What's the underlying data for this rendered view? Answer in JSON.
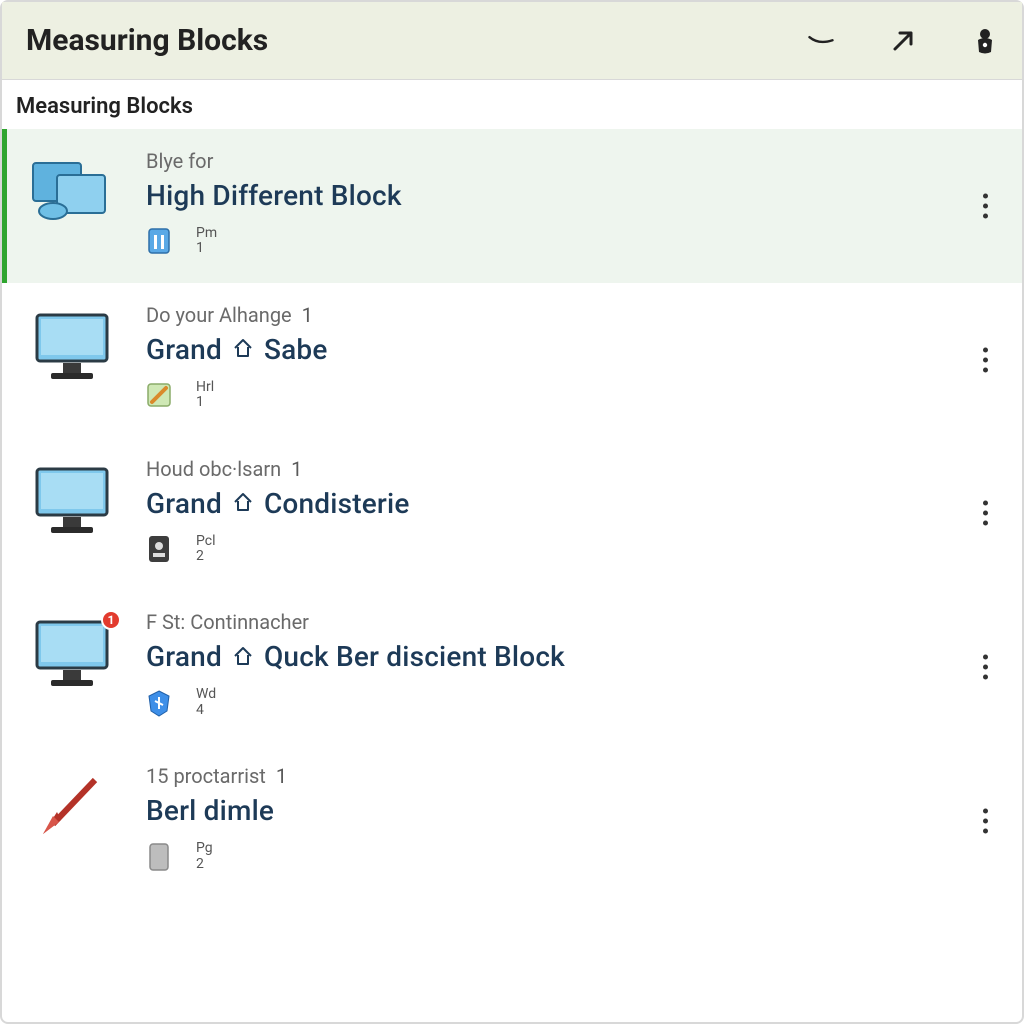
{
  "colors": {
    "titlebar_bg": "#edf0e2",
    "selected_bg": "#eef5ee",
    "selected_border": "#2fa52f",
    "title_text": "#1d3a57",
    "muted_text": "#6a6a6a",
    "notif_bg": "#e23b2e"
  },
  "header": {
    "title": "Measuring Blocks"
  },
  "subheader": "Measuring Blocks",
  "items": [
    {
      "supertitle": "Blye for",
      "supertitle_num": "",
      "title_pre": "High Different Block",
      "title_post": "",
      "has_home_icon": false,
      "thumb": "devices",
      "badge": "blue-building",
      "meta_code": "Pm",
      "meta_num": "1",
      "selected": true,
      "notif": ""
    },
    {
      "supertitle": "Do your Alhange",
      "supertitle_num": "1",
      "title_pre": "Grand",
      "title_post": "Sabe",
      "has_home_icon": true,
      "thumb": "monitor",
      "badge": "green-pencil",
      "meta_code": "Hrl",
      "meta_num": "1",
      "selected": false,
      "notif": ""
    },
    {
      "supertitle": "Houd obc·lsarn",
      "supertitle_num": "1",
      "title_pre": "Grand",
      "title_post": "Condisterie",
      "has_home_icon": true,
      "thumb": "monitor",
      "badge": "dark-card",
      "meta_code": "Pcl",
      "meta_num": "2",
      "selected": false,
      "notif": ""
    },
    {
      "supertitle": "F St: Continnacher",
      "supertitle_num": "",
      "title_pre": "Grand",
      "title_post": "Quck Ber discient Block",
      "has_home_icon": true,
      "thumb": "monitor",
      "badge": "blue-shield",
      "meta_code": "Wd",
      "meta_num": "4",
      "selected": false,
      "notif": "1"
    },
    {
      "supertitle": "15 proctarrist",
      "supertitle_num": "1",
      "title_pre": "Berl dimle",
      "title_post": "",
      "has_home_icon": false,
      "thumb": "arrow",
      "badge": "grey-rect",
      "meta_code": "Pg",
      "meta_num": "2",
      "selected": false,
      "notif": ""
    }
  ]
}
